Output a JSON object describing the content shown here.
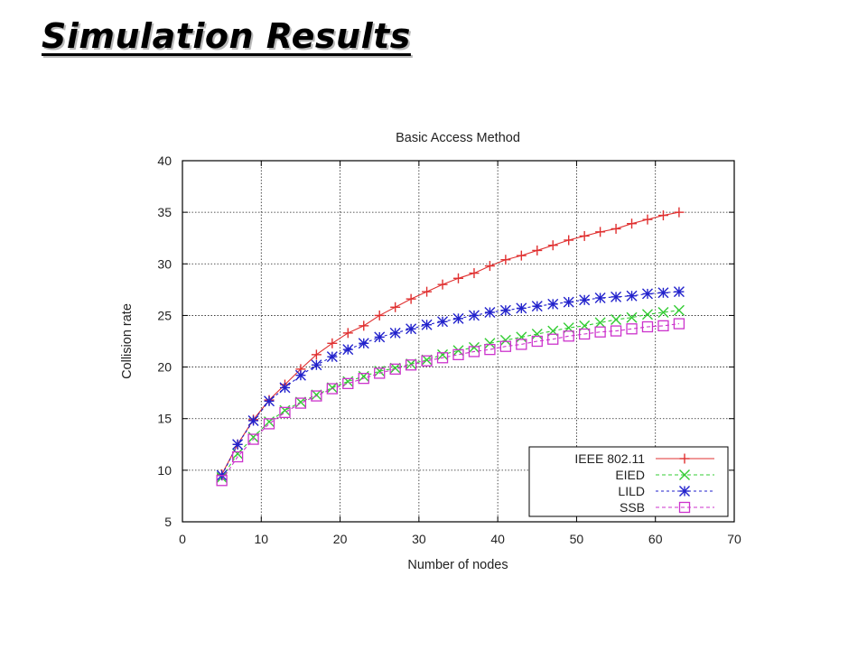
{
  "slide": {
    "title": "Simulation Results"
  },
  "chart_data": {
    "type": "line",
    "title": "Basic Access Method",
    "xlabel": "Number of nodes",
    "ylabel": "Collision rate",
    "xlim": [
      0,
      70
    ],
    "ylim": [
      5,
      40
    ],
    "xticks": [
      0,
      10,
      20,
      30,
      40,
      50,
      60,
      70
    ],
    "yticks": [
      5,
      10,
      15,
      20,
      25,
      30,
      35,
      40
    ],
    "grid": true,
    "legend_position": "bottom-right",
    "x": [
      5,
      7,
      9,
      11,
      13,
      15,
      17,
      19,
      21,
      23,
      25,
      27,
      29,
      31,
      33,
      35,
      37,
      39,
      41,
      43,
      45,
      47,
      49,
      51,
      53,
      55,
      57,
      59,
      61,
      63
    ],
    "series": [
      {
        "name": "IEEE 802.11",
        "color": "#e03030",
        "marker": "plus",
        "dash": "",
        "values": [
          9.6,
          12.5,
          14.9,
          16.8,
          18.3,
          19.8,
          21.2,
          22.3,
          23.3,
          24.0,
          25.0,
          25.8,
          26.6,
          27.3,
          28.0,
          28.6,
          29.1,
          29.8,
          30.4,
          30.8,
          31.3,
          31.8,
          32.3,
          32.7,
          33.1,
          33.4,
          33.9,
          34.3,
          34.7,
          35.0
        ]
      },
      {
        "name": "EIED",
        "color": "#33cc33",
        "marker": "x",
        "dash": "4,3",
        "values": [
          9.3,
          11.6,
          13.2,
          14.7,
          15.8,
          16.6,
          17.3,
          18.0,
          18.6,
          19.1,
          19.6,
          19.9,
          20.3,
          20.7,
          21.2,
          21.6,
          21.9,
          22.3,
          22.6,
          22.9,
          23.2,
          23.5,
          23.8,
          24.0,
          24.3,
          24.6,
          24.8,
          25.1,
          25.3,
          25.5
        ]
      },
      {
        "name": "LILD",
        "color": "#2222cc",
        "marker": "star",
        "dash": "3,3",
        "values": [
          9.5,
          12.5,
          14.8,
          16.7,
          18.0,
          19.2,
          20.2,
          21.0,
          21.7,
          22.3,
          22.9,
          23.3,
          23.7,
          24.1,
          24.4,
          24.7,
          25.0,
          25.3,
          25.5,
          25.7,
          25.9,
          26.1,
          26.3,
          26.5,
          26.7,
          26.8,
          26.9,
          27.1,
          27.2,
          27.3
        ]
      },
      {
        "name": "SSB",
        "color": "#cc33cc",
        "marker": "square",
        "dash": "4,3",
        "values": [
          9.0,
          11.3,
          13.0,
          14.5,
          15.6,
          16.5,
          17.2,
          17.9,
          18.4,
          18.9,
          19.4,
          19.8,
          20.2,
          20.6,
          20.9,
          21.2,
          21.5,
          21.7,
          22.0,
          22.2,
          22.5,
          22.7,
          23.0,
          23.2,
          23.4,
          23.5,
          23.7,
          23.9,
          24.0,
          24.2
        ]
      }
    ]
  }
}
